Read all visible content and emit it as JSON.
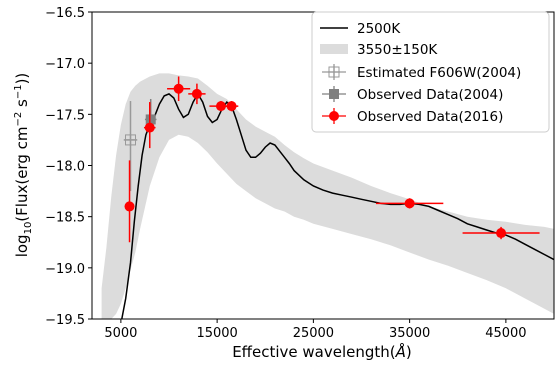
{
  "chart_data": {
    "type": "line",
    "xlabel_main": "Effective wavelength(",
    "xlabel_unit": "Å",
    "xlabel_close": ")",
    "ylabel_prefix": "log",
    "ylabel_sub": "10",
    "ylabel_mid": "(Flux(erg cm",
    "ylabel_exp1": "−2",
    "ylabel_mid2": " s",
    "ylabel_exp2": "−1",
    "ylabel_end": "))",
    "xlim": [
      2000,
      50000
    ],
    "ylim": [
      -19.5,
      -16.5
    ],
    "x_ticks": [
      5000,
      15000,
      25000,
      35000,
      45000
    ],
    "x_tick_labels": [
      "5000",
      "15000",
      "25000",
      "35000",
      "45000"
    ],
    "y_ticks": [
      -16.5,
      -17.0,
      -17.5,
      -18.0,
      -18.5,
      -19.0,
      -19.5
    ],
    "y_tick_labels": [
      "−16.5",
      "−17.0",
      "−17.5",
      "−18.0",
      "−18.5",
      "−19.0",
      "−19.5"
    ],
    "grid": false,
    "legend_position": "top-right",
    "model_line": {
      "name": "2500K",
      "color": "#000000",
      "x": [
        5100,
        5500,
        6000,
        6400,
        6800,
        7200,
        7600,
        8000,
        8500,
        9000,
        9500,
        10000,
        10500,
        11000,
        11500,
        12000,
        12500,
        13000,
        13500,
        14000,
        14500,
        15000,
        15500,
        16000,
        16500,
        17000,
        17500,
        18000,
        18500,
        19000,
        19500,
        20000,
        20500,
        21000,
        21500,
        22000,
        22500,
        23000,
        24000,
        25000,
        26000,
        27000,
        28000,
        29000,
        30000,
        31000,
        32000,
        33000,
        34000,
        35000,
        36000,
        37000,
        38000,
        39000,
        40000,
        41000,
        42000,
        43000,
        44000,
        45000,
        46000,
        47000,
        48000,
        49000,
        50000
      ],
      "y": [
        -19.5,
        -19.3,
        -18.95,
        -18.55,
        -18.2,
        -17.9,
        -17.7,
        -17.6,
        -17.52,
        -17.4,
        -17.32,
        -17.3,
        -17.34,
        -17.45,
        -17.53,
        -17.5,
        -17.38,
        -17.3,
        -17.38,
        -17.52,
        -17.58,
        -17.55,
        -17.45,
        -17.38,
        -17.42,
        -17.55,
        -17.7,
        -17.85,
        -17.92,
        -17.92,
        -17.88,
        -17.82,
        -17.78,
        -17.8,
        -17.86,
        -17.92,
        -17.98,
        -18.05,
        -18.14,
        -18.2,
        -18.24,
        -18.27,
        -18.29,
        -18.31,
        -18.33,
        -18.35,
        -18.37,
        -18.38,
        -18.38,
        -18.37,
        -18.38,
        -18.4,
        -18.44,
        -18.48,
        -18.52,
        -18.57,
        -18.6,
        -18.63,
        -18.66,
        -18.68,
        -18.72,
        -18.77,
        -18.82,
        -18.87,
        -18.92
      ]
    },
    "model_band": {
      "name": "3550±150K",
      "color": "#dcdcdc",
      "x": [
        3000,
        3500,
        4000,
        4500,
        5000,
        5500,
        6000,
        6500,
        7000,
        8000,
        9000,
        10000,
        11000,
        12000,
        13000,
        14000,
        15000,
        16000,
        17000,
        18000,
        19000,
        20000,
        21000,
        22000,
        23000,
        24000,
        25000,
        27000,
        29000,
        31000,
        33000,
        35000,
        37000,
        39000,
        41000,
        43000,
        45000,
        47000,
        49000,
        50000
      ],
      "upper": [
        -19.2,
        -18.8,
        -18.3,
        -17.9,
        -17.6,
        -17.4,
        -17.28,
        -17.22,
        -17.18,
        -17.13,
        -17.1,
        -17.1,
        -17.12,
        -17.13,
        -17.15,
        -17.22,
        -17.3,
        -17.35,
        -17.45,
        -17.55,
        -17.62,
        -17.67,
        -17.72,
        -17.8,
        -17.87,
        -17.93,
        -17.98,
        -18.05,
        -18.12,
        -18.2,
        -18.27,
        -18.33,
        -18.4,
        -18.45,
        -18.5,
        -18.53,
        -18.55,
        -18.58,
        -18.6,
        -18.62
      ],
      "lower": [
        -19.5,
        -19.5,
        -19.5,
        -19.45,
        -19.35,
        -19.2,
        -19.02,
        -18.85,
        -18.62,
        -18.2,
        -17.92,
        -17.75,
        -17.7,
        -17.72,
        -17.78,
        -17.87,
        -17.98,
        -18.08,
        -18.18,
        -18.25,
        -18.32,
        -18.37,
        -18.42,
        -18.45,
        -18.5,
        -18.53,
        -18.57,
        -18.62,
        -18.67,
        -18.72,
        -18.78,
        -18.85,
        -18.92,
        -18.98,
        -19.05,
        -19.12,
        -19.2,
        -19.3,
        -19.4,
        -19.45
      ]
    },
    "series": [
      {
        "name": "Estimated F606W(2004)",
        "color": "#999999",
        "marker": "open-cross",
        "points": [
          {
            "x": 6000,
            "y": -17.75,
            "xerr": 700,
            "yerr_up": 0.38,
            "yerr_down": 0.5
          }
        ]
      },
      {
        "name": "Observed Data(2004)",
        "color": "#808080",
        "marker": "filled-square",
        "points": [
          {
            "x": 8100,
            "y": -17.55,
            "xerr": 600,
            "yerr_up": 0.2,
            "yerr_down": 0.1
          }
        ]
      },
      {
        "name": "Observed Data(2016)",
        "color": "#ff0000",
        "marker": "filled-circle",
        "points": [
          {
            "x": 5900,
            "y": -18.4,
            "xerr": 500,
            "yerr_up": 0.45,
            "yerr_down": 0.35
          },
          {
            "x": 8000,
            "y": -17.63,
            "xerr": 600,
            "yerr_up": 0.25,
            "yerr_down": 0.2
          },
          {
            "x": 11000,
            "y": -17.25,
            "xerr": 1200,
            "yerr_up": 0.12,
            "yerr_down": 0.12
          },
          {
            "x": 12900,
            "y": -17.3,
            "xerr": 900,
            "yerr_up": 0.1,
            "yerr_down": 0.1
          },
          {
            "x": 15400,
            "y": -17.42,
            "xerr": 1200,
            "yerr_up": 0.05,
            "yerr_down": 0.05
          },
          {
            "x": 16500,
            "y": -17.42,
            "xerr": 700,
            "yerr_up": 0.05,
            "yerr_down": 0.05
          },
          {
            "x": 35000,
            "y": -18.37,
            "xerr": 3500,
            "yerr_up": 0.05,
            "yerr_down": 0.05
          },
          {
            "x": 44500,
            "y": -18.66,
            "xerr": 4000,
            "yerr_up": 0.06,
            "yerr_down": 0.06
          }
        ]
      }
    ]
  }
}
